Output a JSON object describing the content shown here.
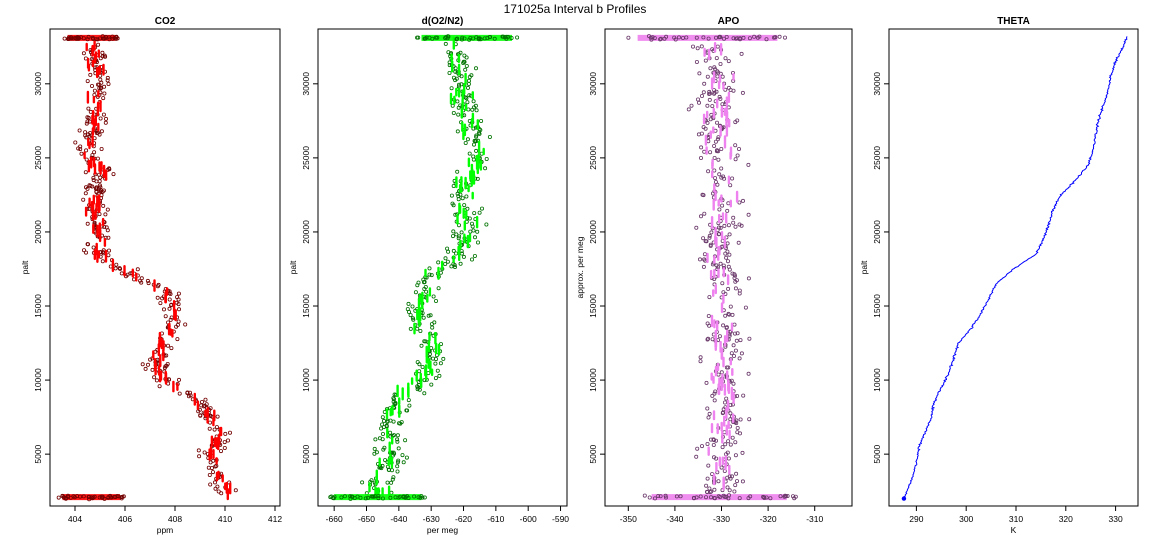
{
  "figure_title": "171025a   Interval b Profiles",
  "chart_data": [
    {
      "type": "scatter",
      "title": "CO2",
      "xlabel": "ppm",
      "ylabel": "palt",
      "xlim": [
        403.0,
        412.2
      ],
      "ylim": [
        1500,
        33700
      ],
      "xticks": [
        404,
        406,
        408,
        410,
        412
      ],
      "yticks": [
        5000,
        10000,
        15000,
        20000,
        25000,
        30000
      ],
      "color": "#ff0000",
      "profile": [
        [
          2000,
          410.2
        ],
        [
          3000,
          409.9
        ],
        [
          4000,
          409.5
        ],
        [
          5000,
          409.4
        ],
        [
          6000,
          409.8
        ],
        [
          7000,
          409.6
        ],
        [
          8000,
          409.2
        ],
        [
          9000,
          408.5
        ],
        [
          10000,
          407.6
        ],
        [
          11000,
          407.2
        ],
        [
          12000,
          407.4
        ],
        [
          13000,
          407.7
        ],
        [
          14000,
          408.0
        ],
        [
          15000,
          407.9
        ],
        [
          16000,
          407.8
        ],
        [
          17000,
          406.5
        ],
        [
          18000,
          405.3
        ],
        [
          19000,
          404.9
        ],
        [
          20000,
          405.0
        ],
        [
          21000,
          404.8
        ],
        [
          22000,
          404.8
        ],
        [
          23000,
          404.9
        ],
        [
          24000,
          405.0
        ],
        [
          25000,
          404.7
        ],
        [
          26000,
          404.6
        ],
        [
          27000,
          404.7
        ],
        [
          28000,
          404.9
        ],
        [
          29000,
          404.8
        ],
        [
          30000,
          405.1
        ],
        [
          31000,
          404.9
        ],
        [
          32000,
          404.7
        ],
        [
          33000,
          404.5
        ]
      ],
      "spread": 0.35,
      "surface_band": [
        403.5,
        405.8
      ],
      "top_band": [
        403.7,
        405.6
      ]
    },
    {
      "type": "scatter",
      "title": "d(O2/N2)",
      "xlabel": "per meg",
      "ylabel": "palt",
      "xlim": [
        -665,
        -588
      ],
      "ylim": [
        1500,
        33700
      ],
      "xticks": [
        -660,
        -650,
        -640,
        -630,
        -620,
        -610,
        -600,
        -590
      ],
      "yticks": [
        5000,
        10000,
        15000,
        20000,
        25000,
        30000
      ],
      "color": "#00ff00",
      "profile": [
        [
          2000,
          -645
        ],
        [
          3000,
          -647
        ],
        [
          4000,
          -643
        ],
        [
          5000,
          -643
        ],
        [
          6000,
          -642
        ],
        [
          7000,
          -643
        ],
        [
          8000,
          -641
        ],
        [
          9000,
          -638
        ],
        [
          10000,
          -634
        ],
        [
          11000,
          -630
        ],
        [
          12000,
          -629
        ],
        [
          13000,
          -632
        ],
        [
          14000,
          -634
        ],
        [
          15000,
          -634
        ],
        [
          16000,
          -632
        ],
        [
          17000,
          -630
        ],
        [
          18000,
          -624
        ],
        [
          19000,
          -621
        ],
        [
          20000,
          -619
        ],
        [
          21000,
          -618
        ],
        [
          22000,
          -621
        ],
        [
          23000,
          -620
        ],
        [
          24000,
          -617
        ],
        [
          25000,
          -616
        ],
        [
          26000,
          -617
        ],
        [
          27000,
          -618
        ],
        [
          28000,
          -619
        ],
        [
          29000,
          -621
        ],
        [
          30000,
          -620
        ],
        [
          31000,
          -621
        ],
        [
          32000,
          -623
        ],
        [
          33000,
          -623
        ]
      ],
      "spread": 3.5,
      "surface_band": [
        -660,
        -633
      ],
      "top_band": [
        -633,
        -605
      ]
    },
    {
      "type": "scatter",
      "title": "APO",
      "xlabel": "",
      "ylabel": "approx. per meg",
      "xlim": [
        -355,
        -302
      ],
      "ylim": [
        1500,
        33700
      ],
      "xticks": [
        -350,
        -340,
        -330,
        -320,
        -310
      ],
      "yticks": [
        5000,
        10000,
        15000,
        20000,
        25000,
        30000
      ],
      "color": "#ee82ee",
      "profile": [
        [
          2000,
          -330
        ],
        [
          5000,
          -330
        ],
        [
          10000,
          -329
        ],
        [
          15000,
          -330
        ],
        [
          20000,
          -330
        ],
        [
          25000,
          -330
        ],
        [
          30000,
          -331
        ],
        [
          33000,
          -332
        ]
      ],
      "spread": 3.5,
      "surface_band": [
        -345,
        -316
      ],
      "top_band": [
        -348,
        -318
      ]
    },
    {
      "type": "line",
      "title": "THETA",
      "xlabel": "K",
      "ylabel": "palt",
      "xlim": [
        284.5,
        334.5
      ],
      "ylim": [
        1500,
        33700
      ],
      "xticks": [
        290,
        300,
        310,
        320,
        330
      ],
      "yticks": [
        5000,
        10000,
        15000,
        20000,
        25000,
        30000
      ],
      "color": "#0000ff",
      "profile": [
        [
          2000,
          287.5
        ],
        [
          2600,
          288.2
        ],
        [
          3400,
          289.2
        ],
        [
          4500,
          290.0
        ],
        [
          5500,
          290.5
        ],
        [
          6500,
          291.8
        ],
        [
          7500,
          293.0
        ],
        [
          8500,
          293.5
        ],
        [
          9500,
          295.0
        ],
        [
          10500,
          296.5
        ],
        [
          11500,
          297.5
        ],
        [
          12500,
          298.5
        ],
        [
          13500,
          301.0
        ],
        [
          14500,
          303.0
        ],
        [
          15500,
          304.5
        ],
        [
          16500,
          306.0
        ],
        [
          17500,
          309.5
        ],
        [
          18500,
          314.0
        ],
        [
          19500,
          315.5
        ],
        [
          20500,
          316.5
        ],
        [
          21500,
          317.5
        ],
        [
          22500,
          319.0
        ],
        [
          23500,
          322.0
        ],
        [
          24500,
          324.5
        ],
        [
          25500,
          325.5
        ],
        [
          26500,
          326.0
        ],
        [
          27500,
          326.5
        ],
        [
          28500,
          327.5
        ],
        [
          29500,
          328.5
        ],
        [
          30500,
          329.0
        ],
        [
          31500,
          330.0
        ],
        [
          32500,
          331.5
        ],
        [
          33200,
          332.4
        ]
      ]
    }
  ]
}
